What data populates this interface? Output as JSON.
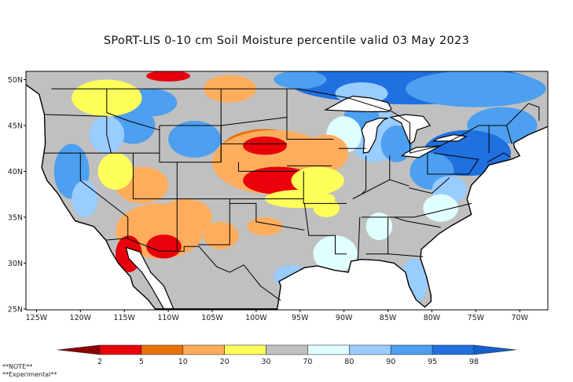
{
  "title": "SPoRT-LIS 0-10 cm Soil Moisture percentile valid 03 May 2023",
  "map": {
    "lat_labels": [
      "25N",
      "30N",
      "35N",
      "40N",
      "45N",
      "50N"
    ],
    "lat_values": [
      25,
      30,
      35,
      40,
      45,
      50
    ],
    "lon_labels": [
      "125W",
      "120W",
      "115W",
      "110W",
      "105W",
      "100W",
      "95W",
      "90W",
      "85W",
      "80W",
      "75W",
      "70W"
    ],
    "lon_values": [
      -125,
      -120,
      -115,
      -110,
      -105,
      -100,
      -95,
      -90,
      -85,
      -80,
      -75,
      -70
    ],
    "extent": {
      "lon": [
        -126.2,
        -66.8
      ],
      "lat": [
        24.9,
        50.9
      ]
    }
  },
  "colorbar": {
    "labels": [
      "2",
      "5",
      "10",
      "20",
      "30",
      "70",
      "80",
      "90",
      "95",
      "98"
    ],
    "colors": [
      "#8b0000",
      "#e8000b",
      "#e87000",
      "#ffad5c",
      "#ffff5a",
      "#c0c0c0",
      "#e0ffff",
      "#99ccff",
      "#4d9fef",
      "#2070e0",
      "#1560cc"
    ]
  },
  "notes": [
    "**NOTE**",
    "**Experimental**"
  ]
}
